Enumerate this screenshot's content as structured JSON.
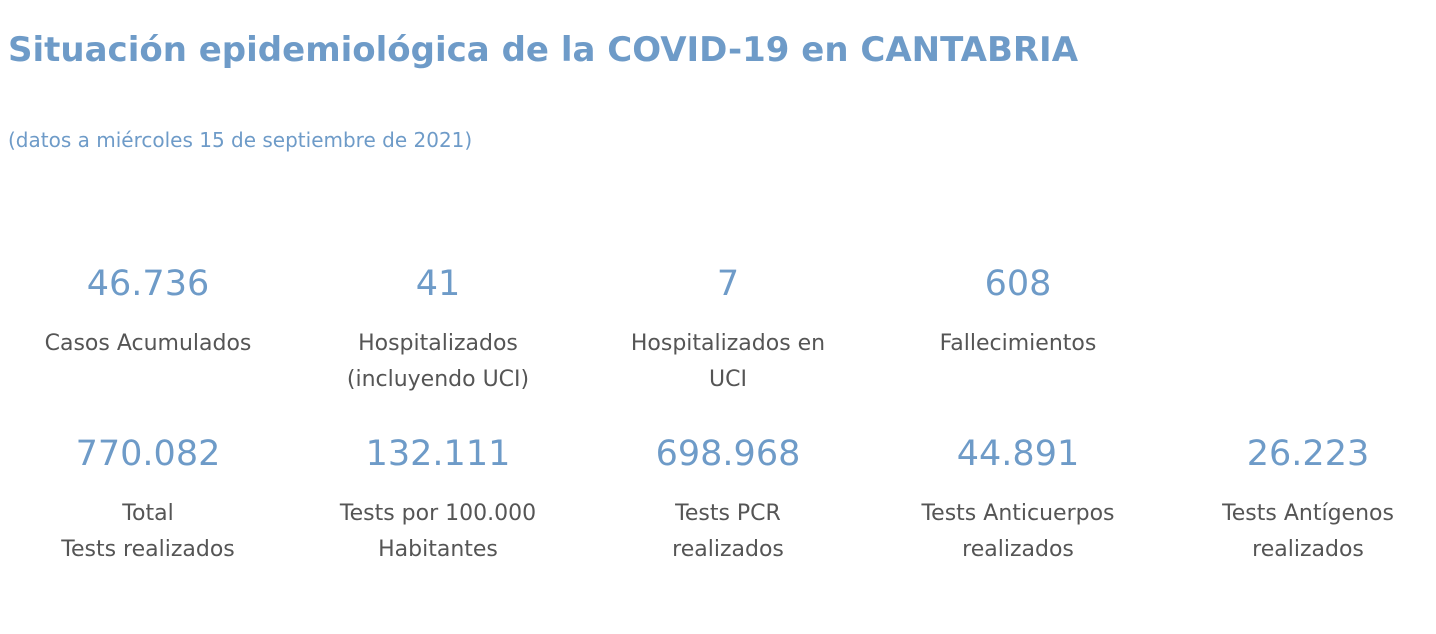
{
  "header": {
    "title": "Situación epidemiológica de la COVID-19 en CANTABRIA",
    "subtitle": "(datos a miércoles 15 de septiembre de 2021)"
  },
  "stats_row_1": [
    {
      "value": "46.736",
      "label_lines": [
        "Casos Acumulados"
      ]
    },
    {
      "value": "41",
      "label_lines": [
        "Hospitalizados",
        "(incluyendo UCI)"
      ]
    },
    {
      "value": "7",
      "label_lines": [
        "Hospitalizados en",
        "UCI"
      ]
    },
    {
      "value": "608",
      "label_lines": [
        "Fallecimientos"
      ]
    }
  ],
  "stats_row_2": [
    {
      "value": "770.082",
      "label_lines": [
        "Total",
        "Tests realizados"
      ]
    },
    {
      "value": "132.111",
      "label_lines": [
        "Tests por 100.000",
        "Habitantes"
      ]
    },
    {
      "value": "698.968",
      "label_lines": [
        "Tests PCR",
        "realizados"
      ]
    },
    {
      "value": "44.891",
      "label_lines": [
        "Tests Anticuerpos",
        "realizados"
      ]
    },
    {
      "value": "26.223",
      "label_lines": [
        "Tests Antígenos",
        "realizados"
      ]
    }
  ],
  "colors": {
    "accent": "#6e9bc8",
    "label_text": "#555555",
    "background": "#ffffff"
  }
}
